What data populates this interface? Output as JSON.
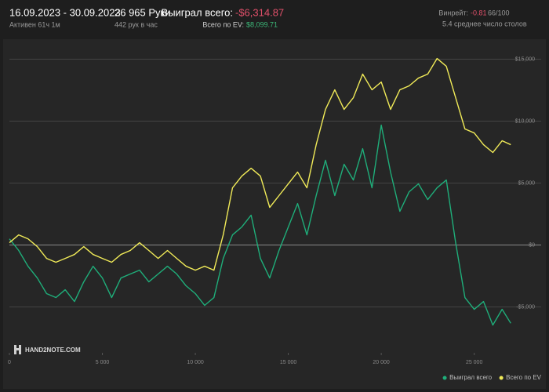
{
  "header": {
    "period": "16.09.2023 - 30.09.2023",
    "active": "Активен 61ч 1м",
    "hands": "26 965 Руки",
    "rate": "442 рук в час",
    "won_label": "Выиграл всего:",
    "won_value": "-$6,314.87",
    "ev_label": "Всего по EV:",
    "ev_value": "$8,099.71",
    "winrate_label": "Винрейт:",
    "winrate_value": "-0.81",
    "winrate_extra": "66/100",
    "tables": "5.4 среднее число столов"
  },
  "logo": "HAND2NOTE.COM",
  "chart_data": {
    "type": "line",
    "grid": true,
    "legend": "bottom-right",
    "x": [
      0,
      500,
      1000,
      1500,
      2000,
      2500,
      3000,
      3500,
      4000,
      4500,
      5000,
      5500,
      6000,
      6500,
      7000,
      7500,
      8000,
      8500,
      9000,
      9500,
      10000,
      10500,
      11000,
      11500,
      12000,
      12500,
      13000,
      13500,
      14000,
      14500,
      15000,
      15500,
      16000,
      16500,
      17000,
      17500,
      18000,
      18500,
      19000,
      19500,
      20000,
      20500,
      21000,
      21500,
      22000,
      22500,
      23000,
      23500,
      24000,
      24500,
      25000,
      25500,
      26000,
      26500,
      26965
    ],
    "series": [
      {
        "name": "Выиграл всего",
        "color": "#1fae7a",
        "values": [
          500,
          -440,
          -1710,
          -2660,
          -3920,
          -4240,
          -3610,
          -4560,
          -2970,
          -1710,
          -2660,
          -4240,
          -2660,
          -2340,
          -2030,
          -2970,
          -2340,
          -1710,
          -2340,
          -3290,
          -3920,
          -4870,
          -4240,
          -1080,
          820,
          1460,
          2410,
          -1080,
          -2660,
          -440,
          1460,
          3350,
          820,
          3990,
          6840,
          3990,
          6520,
          5250,
          7780,
          4620,
          9680,
          5890,
          2720,
          4300,
          4940,
          3670,
          4620,
          5250,
          190,
          -4240,
          -5190,
          -4560,
          -6460,
          -5190,
          -6314.87
        ]
      },
      {
        "name": "Всего по EV",
        "color": "#f0ea58",
        "values": [
          190,
          820,
          500,
          -130,
          -1080,
          -1390,
          -1080,
          -760,
          -130,
          -760,
          -1080,
          -1390,
          -760,
          -440,
          190,
          -440,
          -1080,
          -440,
          -1080,
          -1710,
          -2030,
          -1710,
          -2030,
          820,
          4620,
          5570,
          6200,
          5570,
          3040,
          3990,
          4940,
          5890,
          4620,
          8100,
          10950,
          12530,
          10950,
          11900,
          13800,
          12530,
          13160,
          10950,
          12530,
          12850,
          13480,
          13800,
          15060,
          14430,
          11900,
          9370,
          9050,
          8100,
          7470,
          8420,
          8099.71
        ]
      }
    ],
    "xlim": [
      0,
      28600
    ],
    "ylim": [
      -8700,
      16300
    ],
    "xticks": [
      0,
      {
        "value": 5000,
        "label": "5 000"
      },
      {
        "value": 10000,
        "label": "10 000"
      },
      {
        "value": 15000,
        "label": "15 000"
      },
      {
        "value": 20000,
        "label": "20 000"
      },
      {
        "value": 25000,
        "label": "25 000"
      }
    ],
    "yticks": [
      {
        "value": -5000,
        "label": "-$5,000"
      },
      {
        "value": 0,
        "label": "$0"
      },
      {
        "value": 5000,
        "label": "$5,000"
      },
      {
        "value": 10000,
        "label": "$10,000"
      },
      {
        "value": 15000,
        "label": "$15,000"
      }
    ]
  }
}
